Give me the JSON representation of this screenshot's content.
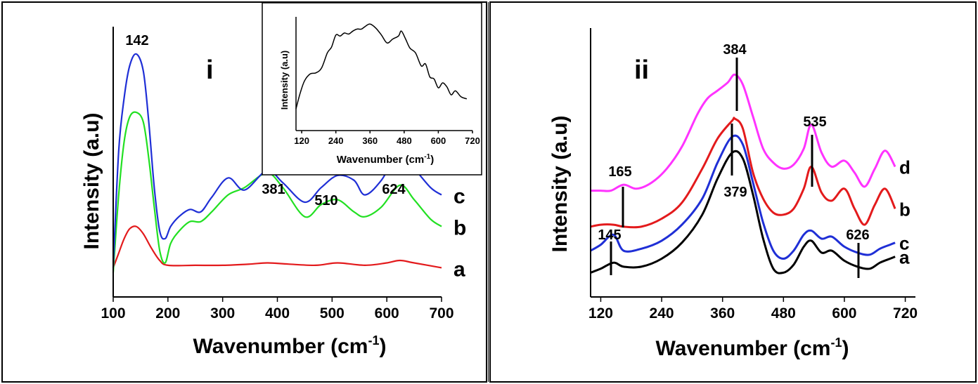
{
  "chart_data": [
    {
      "panel": "i",
      "type": "line",
      "panel_label": "i",
      "xlabel": "Wavenumber (cm",
      "xlabel_sup": "-1",
      "xlabel_close": ")",
      "ylabel": "Intensity (a.u)",
      "xlim": [
        100,
        700
      ],
      "ylim": [
        0,
        100
      ],
      "xticks": [
        "100",
        "200",
        "300",
        "400",
        "500",
        "600",
        "700"
      ],
      "yticks_shown": false,
      "peak_labels": [
        "142",
        "381",
        "510",
        "624"
      ],
      "colors": {
        "a": "#e31a1c",
        "b": "#22e022",
        "c": "#1f2fd6"
      },
      "series": [
        {
          "name": "a",
          "x": [
            100,
            110,
            120,
            130,
            142,
            155,
            170,
            185,
            200,
            250,
            300,
            350,
            381,
            420,
            470,
            510,
            560,
            600,
            624,
            650,
            700
          ],
          "y": [
            10,
            16,
            22,
            26,
            27,
            24,
            18,
            13,
            11,
            11,
            11,
            11.5,
            12,
            11.5,
            11,
            12,
            11,
            12,
            13,
            12,
            10
          ]
        },
        {
          "name": "b",
          "x": [
            100,
            110,
            120,
            130,
            142,
            155,
            165,
            175,
            185,
            195,
            205,
            220,
            240,
            260,
            280,
            310,
            340,
            381,
            410,
            450,
            480,
            510,
            540,
            560,
            590,
            624,
            650,
            680,
            700
          ],
          "y": [
            8,
            40,
            62,
            72,
            74,
            70,
            55,
            35,
            17,
            12,
            20,
            25,
            29,
            29,
            33,
            40,
            43,
            49,
            43,
            31,
            36,
            38,
            33,
            31,
            35,
            44,
            38,
            30,
            27
          ]
        },
        {
          "name": "c",
          "x": [
            100,
            110,
            120,
            130,
            142,
            155,
            165,
            175,
            185,
            195,
            205,
            220,
            240,
            260,
            280,
            310,
            340,
            381,
            410,
            450,
            480,
            510,
            540,
            560,
            590,
            624,
            650,
            680,
            700
          ],
          "y": [
            10,
            58,
            80,
            93,
            98,
            91,
            70,
            43,
            25,
            22,
            27,
            31,
            34,
            33,
            39,
            47,
            42,
            50,
            45,
            37,
            43,
            48,
            46,
            40,
            46,
            58,
            51,
            43,
            40
          ]
        }
      ],
      "series_label_order": [
        "c",
        "b",
        "a"
      ]
    },
    {
      "panel": "inset",
      "type": "line",
      "xlabel": "Wavenumber (cm",
      "xlabel_sup": "-1",
      "xlabel_close": ")",
      "ylabel": "Intensity (a.u)",
      "xlim": [
        100,
        720
      ],
      "ylim": [
        0,
        100
      ],
      "xticks": [
        "120",
        "240",
        "360",
        "480",
        "600",
        "720"
      ],
      "series": [
        {
          "x": [
            100,
            115,
            130,
            150,
            170,
            190,
            210,
            225,
            240,
            255,
            270,
            285,
            300,
            315,
            330,
            345,
            360,
            380,
            400,
            420,
            440,
            460,
            470,
            485,
            500,
            520,
            540,
            555,
            570,
            585,
            600,
            615,
            630,
            645,
            660,
            680,
            700
          ],
          "y": [
            12,
            28,
            40,
            47,
            48,
            53,
            68,
            74,
            86,
            85,
            88,
            87,
            90,
            92,
            92,
            95,
            97,
            93,
            86,
            78,
            82,
            85,
            90,
            82,
            73,
            68,
            55,
            57,
            44,
            42,
            33,
            38,
            34,
            26,
            30,
            24,
            22
          ]
        }
      ]
    },
    {
      "panel": "ii",
      "type": "line",
      "panel_label": "ii",
      "xlabel": "Wavenumber (cm",
      "xlabel_sup": "-1",
      "xlabel_close": ")",
      "ylabel": "Intensity (a.u)",
      "xlim": [
        100,
        740
      ],
      "ylim": [
        0,
        100
      ],
      "xticks": [
        "120",
        "240",
        "360",
        "480",
        "600",
        "720"
      ],
      "yticks_shown": false,
      "peak_labels": [
        "384",
        "379",
        "165",
        "145",
        "535",
        "626"
      ],
      "colors": {
        "a": "#000000",
        "c": "#1f2fd6",
        "b": "#e31a1c",
        "d": "#ff33ff"
      },
      "series": [
        {
          "name": "a",
          "x": [
            100,
            120,
            145,
            165,
            200,
            240,
            280,
            320,
            350,
            379,
            400,
            420,
            440,
            460,
            480,
            500,
            520,
            535,
            555,
            575,
            600,
            626,
            650,
            670,
            690,
            700
          ],
          "y": [
            3,
            5,
            8,
            6,
            6,
            10,
            18,
            32,
            50,
            63,
            60,
            42,
            20,
            5,
            3,
            7,
            16,
            19,
            13,
            14,
            9,
            6,
            5,
            8,
            10,
            11
          ]
        },
        {
          "name": "c",
          "x": [
            100,
            120,
            145,
            165,
            200,
            240,
            280,
            320,
            350,
            379,
            400,
            420,
            440,
            460,
            480,
            500,
            520,
            535,
            555,
            575,
            600,
            626,
            650,
            670,
            690,
            700
          ],
          "y": [
            14,
            17,
            22,
            14,
            15,
            19,
            27,
            40,
            58,
            71,
            67,
            48,
            28,
            14,
            10,
            14,
            22,
            24,
            20,
            21,
            16,
            13,
            12,
            15,
            17,
            18
          ]
        },
        {
          "name": "b",
          "x": [
            100,
            120,
            145,
            165,
            200,
            240,
            280,
            320,
            350,
            379,
            384,
            400,
            420,
            440,
            460,
            480,
            500,
            520,
            535,
            555,
            575,
            600,
            620,
            640,
            660,
            680,
            700
          ],
          "y": [
            26,
            27,
            27,
            26,
            26,
            30,
            38,
            55,
            70,
            79,
            80,
            75,
            53,
            40,
            33,
            32,
            35,
            45,
            56,
            43,
            39,
            45,
            35,
            27,
            37,
            45,
            35
          ]
        },
        {
          "name": "d",
          "x": [
            100,
            120,
            140,
            165,
            190,
            220,
            250,
            280,
            310,
            330,
            350,
            370,
            384,
            400,
            420,
            440,
            460,
            480,
            500,
            520,
            535,
            555,
            575,
            600,
            620,
            640,
            660,
            680,
            700
          ],
          "y": [
            44,
            44,
            44,
            47,
            45,
            48,
            55,
            66,
            82,
            90,
            94,
            98,
            102,
            97,
            81,
            65,
            58,
            55,
            57,
            65,
            77,
            63,
            56,
            59,
            53,
            46,
            55,
            64,
            56
          ]
        }
      ],
      "series_label_order": [
        "d",
        "b",
        "c",
        "a"
      ]
    }
  ]
}
